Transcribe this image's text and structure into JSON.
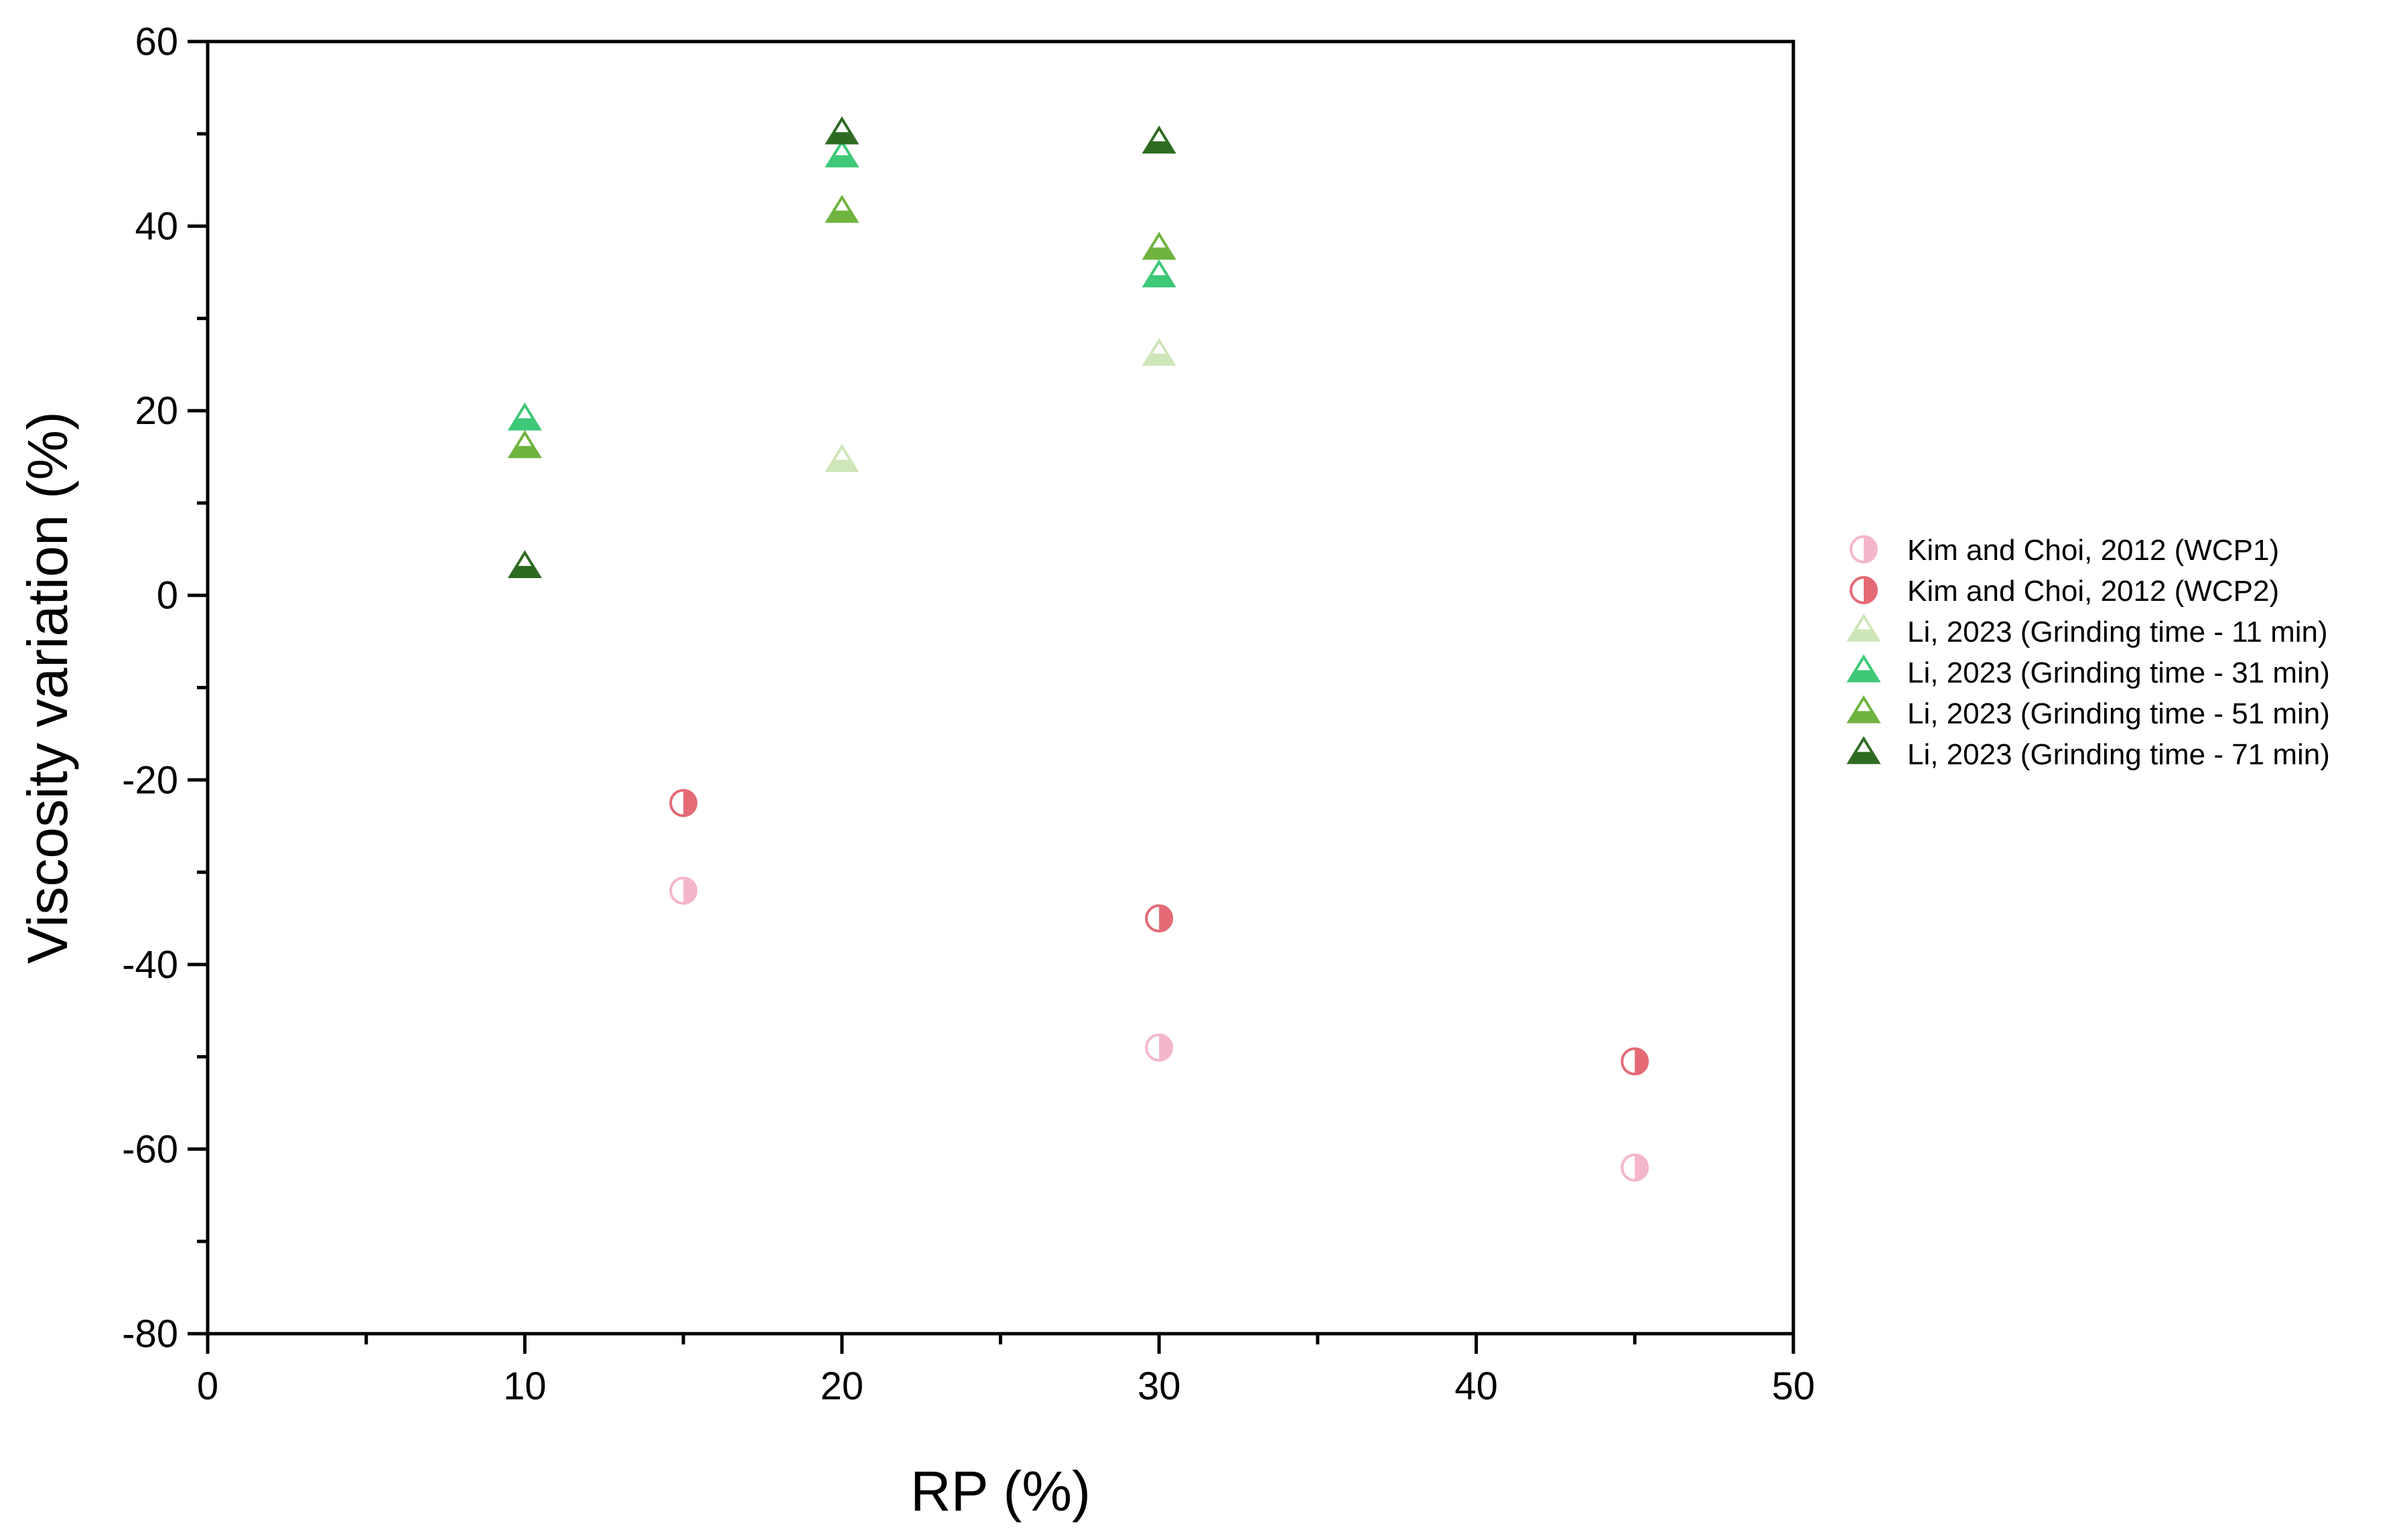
{
  "chart_data": {
    "type": "scatter",
    "xlabel": "RP (%)",
    "ylabel": "Viscosity variation (%)",
    "xlim": [
      0,
      50
    ],
    "ylim": [
      -80,
      60
    ],
    "x_ticks": [
      "0",
      "10",
      "20",
      "30",
      "40",
      "50"
    ],
    "y_ticks": [
      "60",
      "40",
      "20",
      "0",
      "-20",
      "-40",
      "-60",
      "-80"
    ],
    "grid": false,
    "legend_position": "right",
    "series": [
      {
        "name": "Kim and Choi, 2012 (WCP1)",
        "marker": "half-circle",
        "color": "#f4b6cc",
        "points": [
          [
            15,
            -32
          ],
          [
            30,
            -49
          ],
          [
            45,
            -62
          ]
        ]
      },
      {
        "name": "Kim and Choi, 2012 (WCP2)",
        "marker": "half-circle",
        "color": "#e46a76",
        "points": [
          [
            15,
            -22.5
          ],
          [
            30,
            -35
          ],
          [
            45,
            -50.5
          ]
        ]
      },
      {
        "name": "Li, 2023 (Grinding time - 11 min)",
        "marker": "half-triangle",
        "color": "#cfe6b8",
        "points": [
          [
            20,
            14.5
          ],
          [
            30,
            26
          ]
        ]
      },
      {
        "name": "Li, 2023 (Grinding time - 31 min)",
        "marker": "half-triangle",
        "color": "#3ec878",
        "points": [
          [
            10,
            19
          ],
          [
            20,
            47.5
          ],
          [
            30,
            34.5
          ]
        ]
      },
      {
        "name": "Li, 2023 (Grinding time - 51 min)",
        "marker": "half-triangle",
        "color": "#6fb43f",
        "points": [
          [
            10,
            16
          ],
          [
            20,
            41.5
          ],
          [
            30,
            37.5
          ]
        ]
      },
      {
        "name": "Li, 2023 (Grinding time - 71 min)",
        "marker": "half-triangle",
        "color": "#2e6b22",
        "points": [
          [
            10,
            3
          ],
          [
            20,
            50
          ],
          [
            30,
            49
          ]
        ]
      }
    ]
  }
}
